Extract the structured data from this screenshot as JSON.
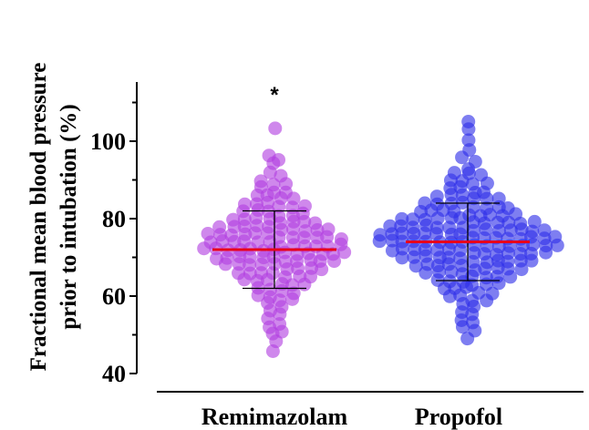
{
  "chart_data": {
    "type": "scatter",
    "subtype": "dot-plot-with-mean-and-sd",
    "title": "",
    "ylabel_lines": [
      "Fractional mean blood pressure",
      "prior to intubation (%)"
    ],
    "xlabel": "",
    "categories": [
      "Remimazolam",
      "Propofol"
    ],
    "ylim": [
      40,
      115
    ],
    "yticks": [
      40,
      60,
      80,
      100
    ],
    "grid": false,
    "legend": "none",
    "significance_marker": {
      "category": "Remimazolam",
      "text": "*"
    },
    "colors": {
      "Remimazolam": "#b23fe0",
      "Propofol": "#2f2fe8",
      "mean_line": "#e8001c",
      "sd_line": "#000000"
    },
    "series": [
      {
        "name": "Remimazolam",
        "mean": 72,
        "sd_low": 62,
        "sd_high": 82,
        "values": [
          103,
          96,
          95,
          94,
          92,
          91,
          90,
          89,
          89,
          88,
          87,
          87,
          86,
          86,
          85,
          85,
          84,
          84,
          84,
          83,
          83,
          83,
          82,
          82,
          82,
          81,
          81,
          81,
          80,
          80,
          80,
          80,
          79,
          79,
          79,
          79,
          78,
          78,
          78,
          78,
          78,
          77,
          77,
          77,
          77,
          77,
          76,
          76,
          76,
          76,
          76,
          76,
          75,
          75,
          75,
          75,
          75,
          75,
          74,
          74,
          74,
          74,
          74,
          74,
          73,
          73,
          73,
          73,
          73,
          73,
          72,
          72,
          72,
          72,
          72,
          72,
          72,
          71,
          71,
          71,
          71,
          71,
          71,
          70,
          70,
          70,
          70,
          70,
          70,
          69,
          69,
          69,
          69,
          69,
          68,
          68,
          68,
          68,
          68,
          67,
          67,
          67,
          67,
          66,
          66,
          66,
          66,
          65,
          65,
          65,
          64,
          64,
          64,
          63,
          63,
          63,
          62,
          62,
          61,
          61,
          60,
          60,
          59,
          59,
          58,
          57,
          56,
          55,
          54,
          53,
          52,
          51,
          50,
          48,
          46
        ]
      },
      {
        "name": "Propofol",
        "mean": 74,
        "sd_low": 64,
        "sd_high": 84,
        "values": [
          105,
          103,
          100,
          98,
          96,
          95,
          93,
          92,
          92,
          91,
          90,
          90,
          89,
          89,
          88,
          88,
          87,
          87,
          86,
          86,
          86,
          85,
          85,
          85,
          84,
          84,
          84,
          84,
          83,
          83,
          83,
          83,
          82,
          82,
          82,
          82,
          81,
          81,
          81,
          81,
          81,
          80,
          80,
          80,
          80,
          80,
          80,
          79,
          79,
          79,
          79,
          79,
          79,
          78,
          78,
          78,
          78,
          78,
          78,
          78,
          77,
          77,
          77,
          77,
          77,
          77,
          77,
          76,
          76,
          76,
          76,
          76,
          76,
          76,
          76,
          75,
          75,
          75,
          75,
          75,
          75,
          75,
          75,
          74,
          74,
          74,
          74,
          74,
          74,
          74,
          74,
          73,
          73,
          73,
          73,
          73,
          73,
          73,
          73,
          72,
          72,
          72,
          72,
          72,
          72,
          72,
          71,
          71,
          71,
          71,
          71,
          71,
          71,
          70,
          70,
          70,
          70,
          70,
          70,
          69,
          69,
          69,
          69,
          69,
          69,
          68,
          68,
          68,
          68,
          68,
          67,
          67,
          67,
          67,
          67,
          66,
          66,
          66,
          66,
          65,
          65,
          65,
          65,
          64,
          64,
          64,
          63,
          63,
          63,
          62,
          62,
          62,
          61,
          61,
          60,
          60,
          59,
          59,
          58,
          57,
          56,
          55,
          54,
          53,
          52,
          51,
          49
        ]
      }
    ]
  }
}
